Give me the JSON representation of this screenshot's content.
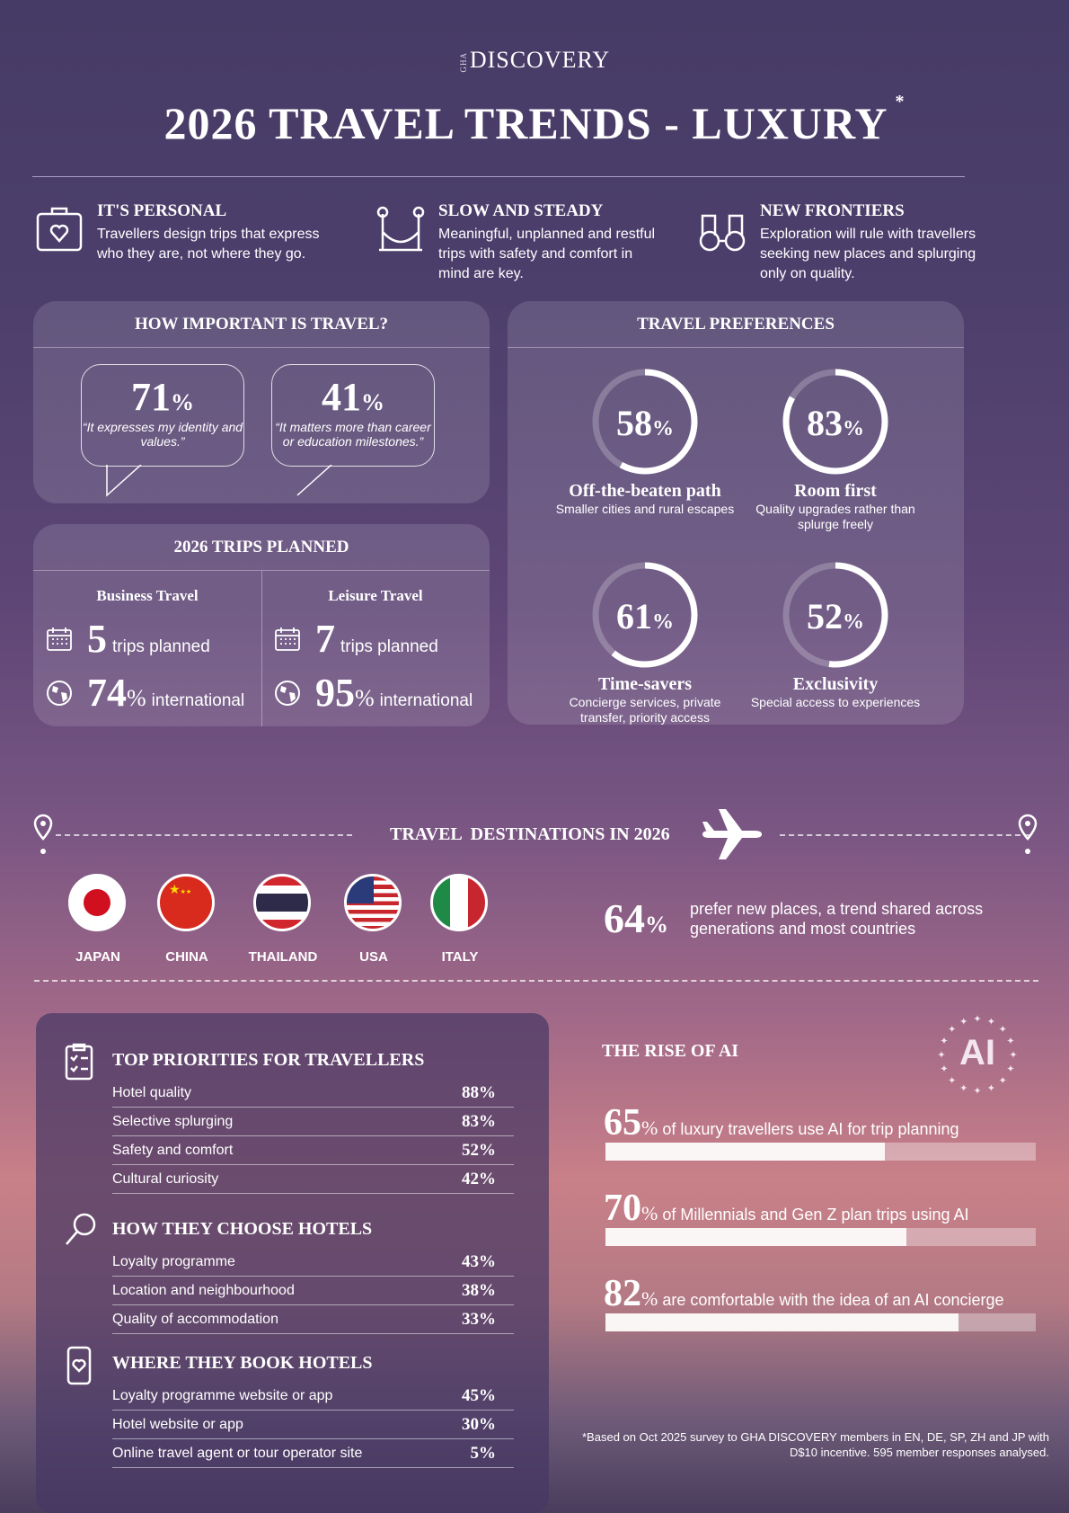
{
  "logo": {
    "prefix": "GHA",
    "name": "DISCOVERY"
  },
  "title": "2026 TRAVEL TRENDS - LUXURY",
  "title_mark": "*",
  "features": [
    {
      "icon": "suitcase-heart-icon",
      "title": "IT'S PERSONAL",
      "text": "Travellers design trips that express who they are, not where they go."
    },
    {
      "icon": "hammock-icon",
      "title": "SLOW AND STEADY",
      "text": "Meaningful, unplanned and restful trips with safety and comfort in mind are key."
    },
    {
      "icon": "binoculars-icon",
      "title": "NEW FRONTIERS",
      "text": "Exploration will rule with travellers seeking new places and splurging only on quality."
    }
  ],
  "importance": {
    "header": "HOW IMPORTANT IS TRAVEL?",
    "items": [
      {
        "value": "71",
        "unit": "%",
        "quote": "“It expresses my identity and values.”"
      },
      {
        "value": "41",
        "unit": "%",
        "quote": "“It matters more than career or education milestones.”"
      }
    ]
  },
  "trips": {
    "header": "2026 TRIPS PLANNED",
    "cols": [
      {
        "title": "Business Travel",
        "trips": "5",
        "trips_label": "trips planned",
        "intl": "74",
        "intl_unit": "%",
        "intl_label": "international"
      },
      {
        "title": "Leisure Travel",
        "trips": "7",
        "trips_label": "trips planned",
        "intl": "95",
        "intl_unit": "%",
        "intl_label": "international"
      }
    ]
  },
  "preferences": {
    "header": "TRAVEL PREFERENCES",
    "items": [
      {
        "value": 58,
        "label": "58",
        "unit": "%",
        "title": "Off-the-beaten path",
        "desc": "Smaller cities and rural escapes"
      },
      {
        "value": 83,
        "label": "83",
        "unit": "%",
        "title": "Room first",
        "desc": "Quality upgrades rather than splurge freely"
      },
      {
        "value": 61,
        "label": "61",
        "unit": "%",
        "title": "Time-savers",
        "desc": "Concierge services, private transfer, priority access"
      },
      {
        "value": 52,
        "label": "52",
        "unit": "%",
        "title": "Exclusivity",
        "desc": "Special access to experiences"
      }
    ]
  },
  "destinations": {
    "header": "TRAVEL  DESTINATIONS IN 2026",
    "countries": [
      "JAPAN",
      "CHINA",
      "THAILAND",
      "USA",
      "ITALY"
    ],
    "stat": "64",
    "stat_unit": "%",
    "stat_text": "prefer new places, a trend shared across generations and most countries"
  },
  "priorities": {
    "sections": [
      {
        "icon": "checklist-icon",
        "title": "TOP PRIORITIES FOR TRAVELLERS",
        "rows": [
          [
            "Hotel quality",
            "88%"
          ],
          [
            "Selective splurging",
            "83%"
          ],
          [
            "Safety and comfort",
            "52%"
          ],
          [
            "Cultural curiosity",
            "42%"
          ]
        ]
      },
      {
        "icon": "magnifier-icon",
        "title": "HOW THEY CHOOSE HOTELS",
        "rows": [
          [
            "Loyalty programme",
            "43%"
          ],
          [
            "Location and neighbourhood",
            "38%"
          ],
          [
            "Quality of accommodation",
            "33%"
          ]
        ]
      },
      {
        "icon": "phone-heart-icon",
        "title": "WHERE THEY BOOK HOTELS",
        "rows": [
          [
            "Loyalty programme website or app",
            "45%"
          ],
          [
            "Hotel website or app",
            "30%"
          ],
          [
            "Online travel agent or tour operator site",
            "5%"
          ]
        ]
      }
    ]
  },
  "ai": {
    "header": "THE RISE OF AI",
    "badge": "AI",
    "items": [
      {
        "value": 65,
        "label": "65",
        "unit": "%",
        "text": "of luxury travellers use AI for trip planning"
      },
      {
        "value": 70,
        "label": "70",
        "unit": "%",
        "text": "of Millennials and Gen Z plan trips using AI"
      },
      {
        "value": 82,
        "label": "82",
        "unit": "%",
        "text": "are comfortable with the idea of an AI concierge"
      }
    ]
  },
  "footnote": "*Based on Oct 2025 survey to GHA DISCOVERY members in EN, DE, SP, ZH and JP with D$10 incentive. 595 member responses analysed.",
  "colors": {
    "bg_top": "#463b66",
    "accent": "#ffffff"
  }
}
